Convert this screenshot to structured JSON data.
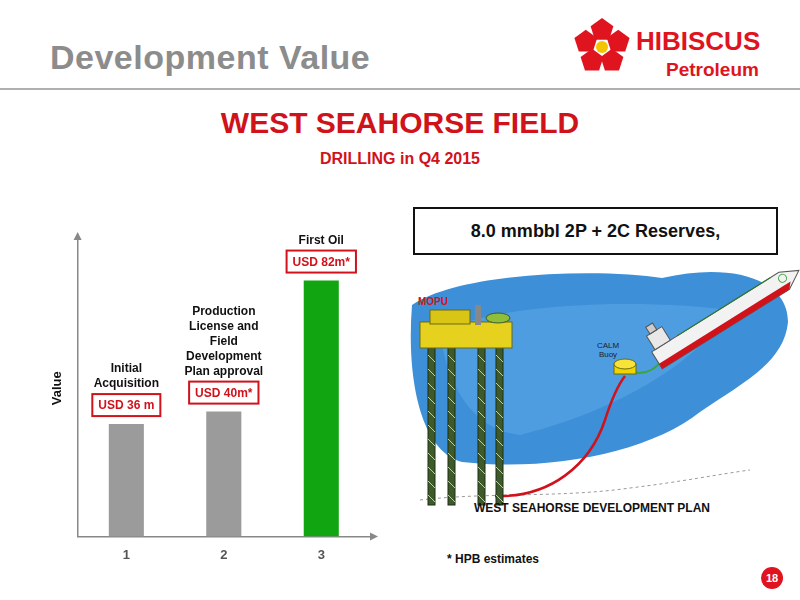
{
  "header": {
    "title": "Development Value",
    "logo": {
      "name": "HIBISCUS",
      "subtitle": "Petroleum"
    },
    "page_number": "18"
  },
  "title": "WEST SEAHORSE FIELD",
  "subtitle": "DRILLING in Q4 2015",
  "chart_data": {
    "type": "bar",
    "y_label": "Value",
    "categories": [
      "1",
      "2",
      "3"
    ],
    "values": [
      36,
      40,
      82
    ],
    "value_labels": [
      "USD 36 m",
      "USD 40m*",
      "USD 82m*"
    ],
    "annotations": [
      "Initial Acquisition",
      "Production License and Field Development Plan approval",
      "First Oil"
    ],
    "colors": [
      "#9b9b9b",
      "#9b9b9b",
      "#12a512"
    ],
    "ylim": [
      0,
      95
    ],
    "grid": false,
    "data_labels": true,
    "tick_labels": "x"
  },
  "reserves": "8.0 mmbbl 2P + 2C Reserves,",
  "diagram": {
    "title": "WEST SEAHORSE DEVELOPMENT PLAN",
    "labels": [
      "MOPU",
      "CALM Buoy"
    ]
  },
  "footnote": "* HPB estimates"
}
